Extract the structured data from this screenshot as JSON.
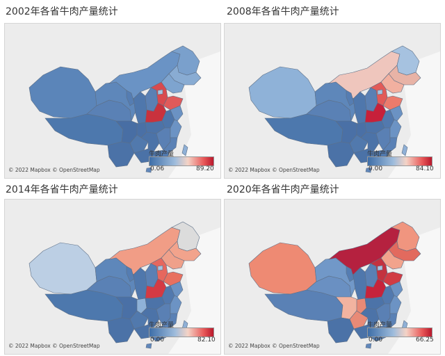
{
  "panels": [
    {
      "title": "2002年各省牛肉产量统计",
      "legend": {
        "title": "牛肉产量",
        "min": "0.06",
        "max": "89.20"
      },
      "attribution": "© 2022 Mapbox © OpenStreetMap",
      "regions": {
        "xinjiang": "#5b85b9",
        "tibet": "#4d78ad",
        "qinghai": "#5a81b5",
        "gansu": "#5e87ba",
        "inner_mongolia": "#6a93c5",
        "heilongjiang": "#7aa0cc",
        "jilin": "#89acd3",
        "liaoning": "#7ea4cf",
        "ningxia": "#557db2",
        "shaanxi": "#4f77ac",
        "shanxi": "#5a80b4",
        "hebei": "#d94a4f",
        "beijing": "#a9c3df",
        "shandong": "#e05a5a",
        "henan": "#c9323d",
        "sichuan": "#486ea4",
        "chongqing": "#4a70a6",
        "hubei": "#4c73a8",
        "anhui": "#4d75aa",
        "jiangsu": "#6b92c3",
        "yunnan": "#4b72a7",
        "guizhou": "#5179ad",
        "hunan": "#4c73a8",
        "jiangxi": "#5a80b4",
        "zhejiang": "#6c93c4",
        "fujian": "#5a81b5",
        "guangxi": "#4b72a7",
        "guangdong": "#5179ad",
        "taiwan": "#8fb0d6",
        "hainan": "#6187ba"
      }
    },
    {
      "title": "2008年各省牛肉产量统计",
      "legend": {
        "title": "牛肉产量",
        "min": "0.00",
        "max": "84.10"
      },
      "attribution": "© 2022 Mapbox © OpenStreetMap",
      "regions": {
        "xinjiang": "#8fb2d8",
        "tibet": "#4d78ad",
        "qinghai": "#5a81b5",
        "gansu": "#5e87ba",
        "inner_mongolia": "#efc6bd",
        "heilongjiang": "#a6c2e0",
        "jilin": "#e8b3a6",
        "liaoning": "#f2b0a0",
        "ningxia": "#557db2",
        "shaanxi": "#4f77ac",
        "shanxi": "#5a80b4",
        "hebei": "#e25a58",
        "beijing": "#a9c3df",
        "shandong": "#ec7b6c",
        "henan": "#c7203a",
        "sichuan": "#4a70a6",
        "chongqing": "#4a70a6",
        "hubei": "#4c73a8",
        "anhui": "#5279ae",
        "jiangsu": "#6b92c3",
        "yunnan": "#4b72a7",
        "guizhou": "#5179ad",
        "hunan": "#4c73a8",
        "jiangxi": "#5a80b4",
        "zhejiang": "#6c93c4",
        "fujian": "#5a81b5",
        "guangxi": "#4b72a7",
        "guangdong": "#5179ad",
        "taiwan": "#8fb0d6",
        "hainan": "#6187ba"
      }
    },
    {
      "title": "2014年各省牛肉产量统计",
      "legend": {
        "title": "牛肉产量",
        "min": "0.00",
        "max": "82.10"
      },
      "attribution": "© 2022 Mapbox © OpenStreetMap",
      "regions": {
        "xinjiang": "#bccfe4",
        "tibet": "#4d78ad",
        "qinghai": "#5a81b5",
        "gansu": "#5e87ba",
        "inner_mongolia": "#f19d86",
        "heilongjiang": "#dcdcdc",
        "jilin": "#f2a38c",
        "liaoning": "#efa08a",
        "ningxia": "#557db2",
        "shaanxi": "#4f77ac",
        "shanxi": "#5a80b4",
        "hebei": "#e6675e",
        "beijing": "#a9c3df",
        "shandong": "#e8705f",
        "henan": "#d43a44",
        "sichuan": "#4a70a6",
        "chongqing": "#8fb2d8",
        "hubei": "#4c73a8",
        "anhui": "#5279ae",
        "jiangsu": "#6b92c3",
        "yunnan": "#4b72a7",
        "guizhou": "#5179ad",
        "hunan": "#4c73a8",
        "jiangxi": "#5a80b4",
        "zhejiang": "#6c93c4",
        "fujian": "#5a81b5",
        "guangxi": "#4b72a7",
        "guangdong": "#5179ad",
        "taiwan": "#8fb0d6",
        "hainan": "#6187ba"
      }
    },
    {
      "title": "2020年各省牛肉产量统计",
      "legend": {
        "title": "牛肉产量",
        "min": "0.00",
        "max": "66.25"
      },
      "attribution": "© 2022 Mapbox © OpenStreetMap",
      "regions": {
        "xinjiang": "#ee8a73",
        "tibet": "#5a81b5",
        "qinghai": "#6a90c2",
        "gansu": "#7198c8",
        "inner_mongolia": "#b5213f",
        "heilongjiang": "#f0957f",
        "jilin": "#e26a5e",
        "liaoning": "#f2a38c",
        "ningxia": "#557db2",
        "shaanxi": "#4f77ac",
        "shanxi": "#5a80b4",
        "hebei": "#c3323f",
        "beijing": "#a9c3df",
        "shandong": "#d13b43",
        "henan": "#c6233b",
        "sichuan": "#f2b3a0",
        "chongqing": "#e98a76",
        "hubei": "#4c73a8",
        "anhui": "#5279ae",
        "jiangsu": "#6b92c3",
        "yunnan": "#4b72a7",
        "guizhou": "#e88a77",
        "hunan": "#4c73a8",
        "jiangxi": "#5a80b4",
        "zhejiang": "#6c93c4",
        "fujian": "#5a81b5",
        "guangxi": "#4b72a7",
        "guangdong": "#5179ad",
        "taiwan": "#8fb0d6",
        "hainan": "#6187ba"
      }
    }
  ]
}
